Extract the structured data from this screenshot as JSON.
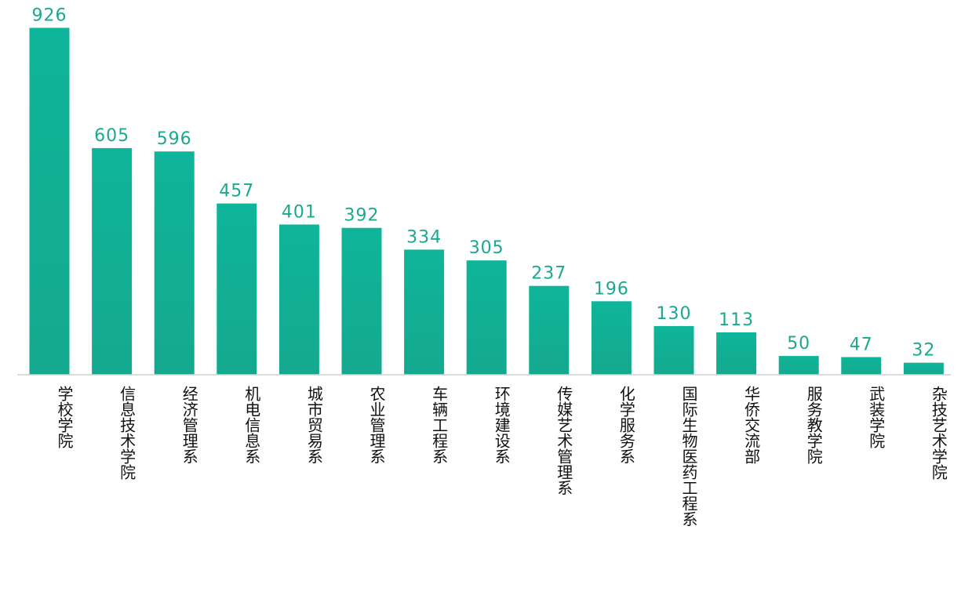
{
  "chart_data": {
    "type": "bar",
    "categories": [
      "学校学院",
      "信息技术学院",
      "经济管理系",
      "机电信息系",
      "城市贸易系",
      "农业管理系",
      "车辆工程系",
      "环境建设系",
      "传媒艺术管理系",
      "化学服务系",
      "国际生物医药工程系",
      "华侨交流部",
      "服务教学院",
      "武装学院",
      "杂技艺术学院"
    ],
    "values": [
      926,
      605,
      596,
      457,
      401,
      392,
      334,
      305,
      237,
      196,
      130,
      113,
      50,
      47,
      32
    ],
    "ylim": [
      0,
      950
    ],
    "grid": false,
    "legend": "none",
    "colors": {
      "bar_top": "#0fb59a",
      "bar_bottom": "#14a98f",
      "value_label": "#1aa88f",
      "axis": "#d0d0d0"
    }
  }
}
